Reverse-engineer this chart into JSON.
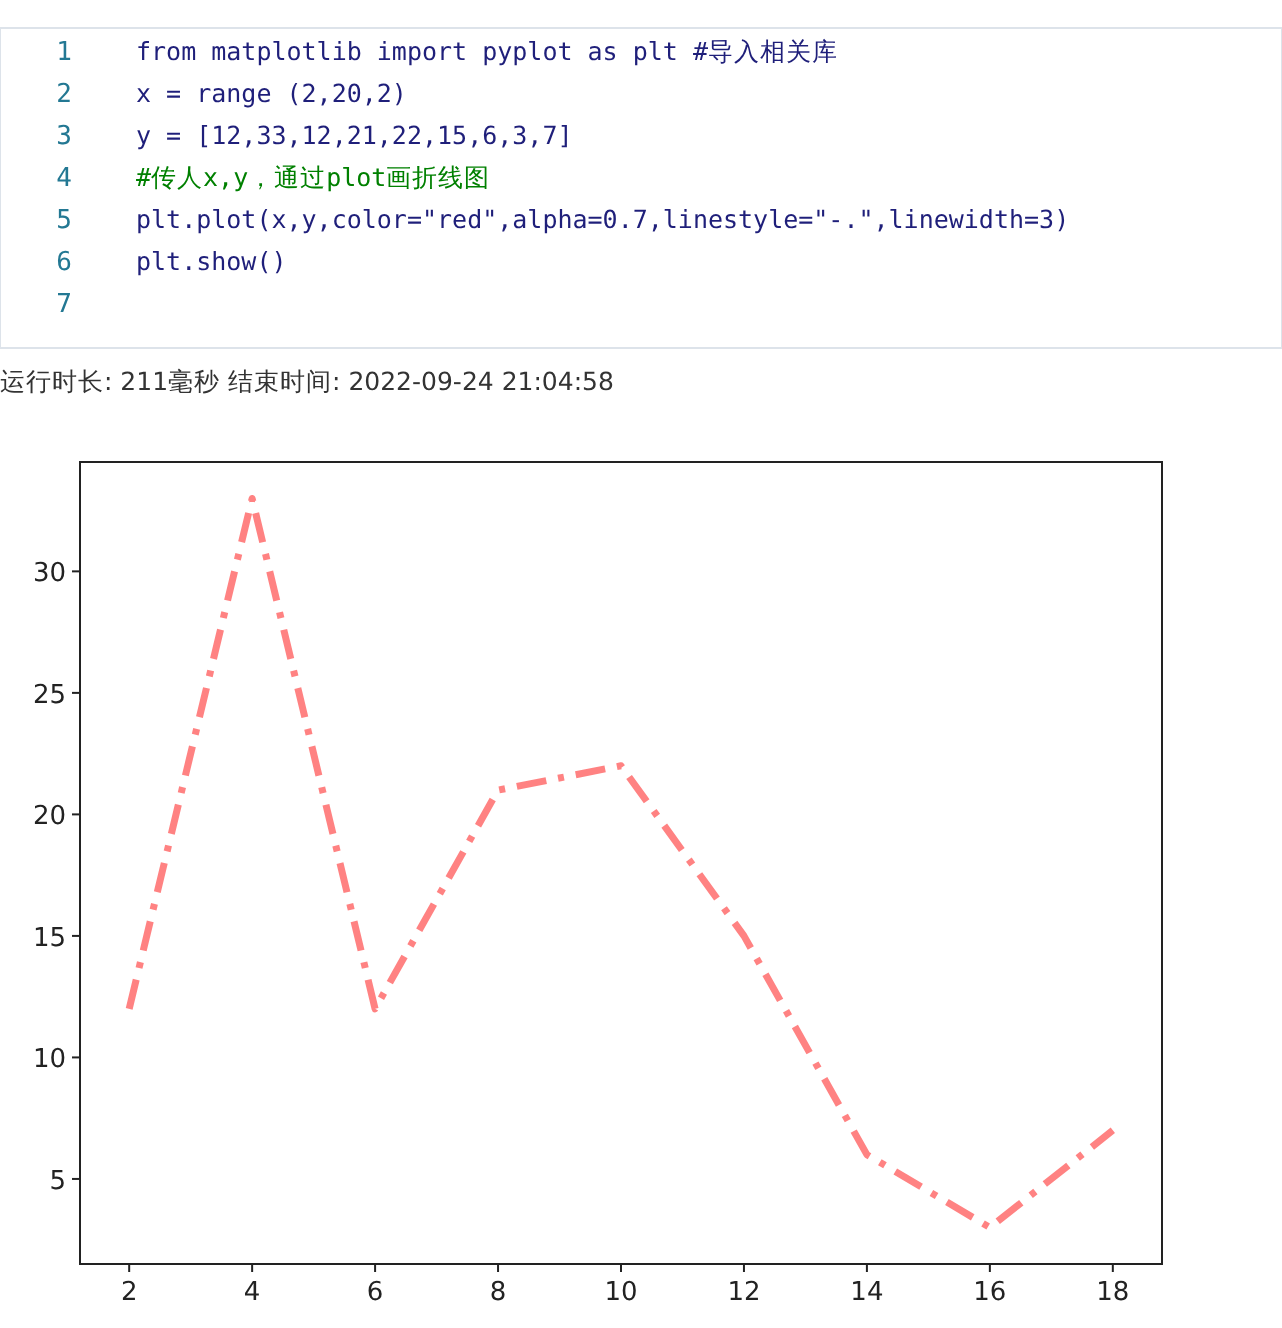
{
  "chart_data": {
    "type": "line",
    "annotations": [
      "1",
      "from matplotlib import pyplot as plt #导入相关库",
      "2",
      "x = range (2,20,2)",
      "3",
      "y =  [12,33,12,21,22,15,6,3,7]",
      "4",
      "#传人x,y，通过plot画折线图",
      "5",
      "plt.plot(x,y,color=\"red\",alpha=0.7,linestyle=\"-.\",linewidth=3)",
      "6",
      "plt.show()",
      "7",
      "运行时长: 211毫秒    结束时间: 2022-09-24 21:04:58"
    ],
    "x": [
      2,
      4,
      6,
      8,
      10,
      12,
      14,
      16,
      18
    ],
    "series": [
      {
        "color": "#ff4d4d",
        "values": [
          12,
          33,
          12,
          21,
          22,
          15,
          6,
          3,
          7
        ]
      }
    ],
    "line_style": "dashed-dot",
    "xlim": [
      1.2,
      18.8
    ],
    "ylim": [
      1.5,
      34.5
    ],
    "xticks": [
      2,
      4,
      6,
      8,
      10,
      12,
      14,
      16,
      18
    ],
    "yticks": [
      5,
      10,
      15,
      20,
      25,
      30
    ],
    "grid": false,
    "marker": "none"
  }
}
